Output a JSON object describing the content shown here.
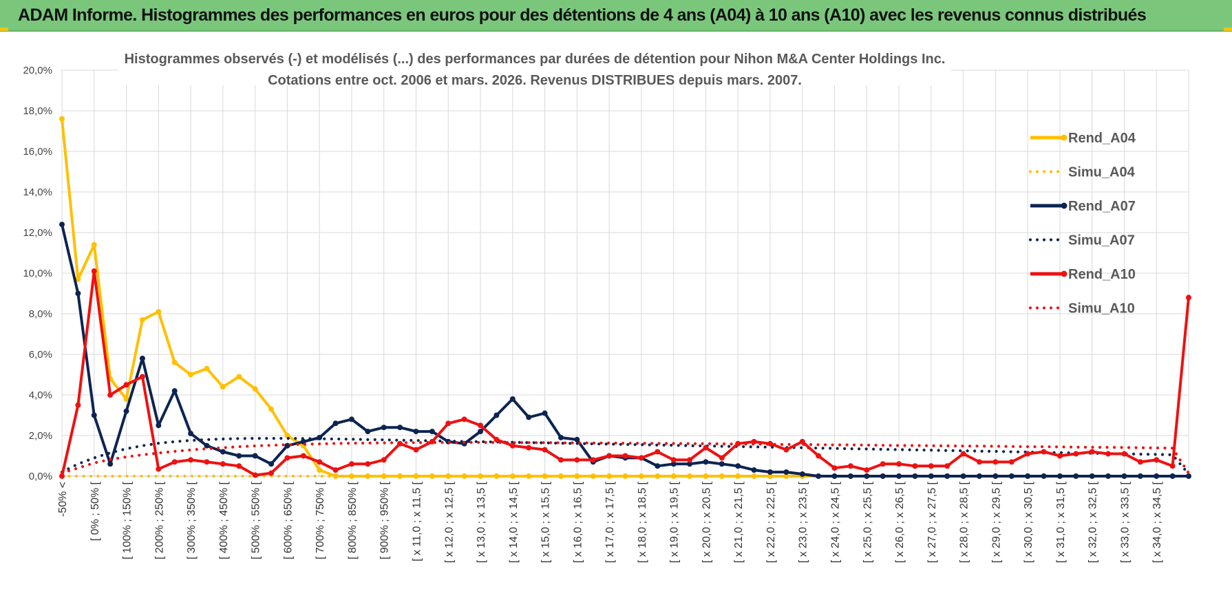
{
  "header": {
    "title": "ADAM Informe. Histogrammes des performances en euros pour des détentions de 4 ans (A04) à 10 ans (A10) avec les revenus connus distribués"
  },
  "colors": {
    "header_bg": "#7ac77c",
    "a04": "#ffc000",
    "a07": "#0d2452",
    "a10": "#ee1111",
    "grid": "#d9d9d9"
  },
  "chart_data": {
    "type": "line",
    "title": "Histogrammes observés (-) et modélisés (...) des performances par durées de détention pour Nihon M&A Center Holdings Inc.",
    "subtitle": "Cotations entre oct. 2006 et mars. 2026. Revenus DISTRIBUES depuis mars. 2007.",
    "xlabel": "",
    "ylabel": "",
    "ylim": [
      0,
      20
    ],
    "y_ticks": [
      "0,0%",
      "2,0%",
      "4,0%",
      "6,0%",
      "8,0%",
      "10,0%",
      "12,0%",
      "14,0%",
      "16,0%",
      "18,0%",
      "20,0%"
    ],
    "x_tick_labels": [
      "-50% <",
      "[ 0% ; 50% [",
      "[ 100% ; 150% [",
      "[ 200% ; 250% [",
      "[ 300% ; 350% [",
      "[ 400% ; 450% [",
      "[ 500% ; 550% [",
      "[ 600% ; 650% [",
      "[ 700% ; 750% [",
      "[ 800% ; 850% [",
      "[ 900% ; 950% [",
      "[ x 11,0 ; x 11,5 [",
      "[ x 12,0 ; x 12,5 [",
      "[ x 13,0 ; x 13,5 [",
      "[ x 14,0 ; x 14,5 [",
      "[ x 15,0 ; x 15,5 [",
      "[ x 16,0 ; x 16,5 [",
      "[ x 17,0 ; x 17,5 [",
      "[ x 18,0 ; x 18,5 [",
      "[ x 19,0 ; x 19,5 [",
      "[ x 20,0 ; x 20,5 [",
      "[ x 21,0 ; x 21,5 [",
      "[ x 22,0 ; x 22,5 [",
      "[ x 23,0 ; x 23,5 [",
      "[ x 24,0 ; x 24,5 [",
      "[ x 25,0 ; x 25,5 [",
      "[ x 26,0 ; x 26,5 [",
      "[ x 27,0 ; x 27,5 [",
      "[ x 28,0 ; x 28,5 [",
      "[ x 29,0 ; x 29,5 [",
      "[ x 30,0 ; x 30,5 [",
      "[ x 31,0 ; x 31,5 [",
      "[ x 32,0 ; x 32,5 [",
      "[ x 33,0 ; x 33,5 [",
      "[ x 34,0 ; x 34,5 ["
    ],
    "legend_position": "right",
    "grid": true,
    "series": [
      {
        "name": "Rend_A04",
        "style": "solid",
        "color": "#ffc000",
        "values": [
          17.6,
          9.7,
          11.4,
          4.8,
          3.8,
          7.7,
          8.1,
          5.6,
          5.0,
          5.3,
          4.4,
          4.9,
          4.3,
          3.3,
          2.0,
          1.5,
          0.3,
          0,
          0,
          0,
          0,
          0,
          0,
          0,
          0,
          0,
          0,
          0,
          0,
          0,
          0,
          0,
          0,
          0,
          0,
          0,
          0,
          0,
          0,
          0,
          0,
          0,
          0,
          0,
          0,
          0,
          0,
          0,
          0,
          0,
          0,
          0,
          0,
          0,
          0,
          0,
          0,
          0,
          0,
          0,
          0,
          0,
          0,
          0,
          0,
          0,
          0,
          0,
          0,
          0,
          0
        ]
      },
      {
        "name": "Simu_A04",
        "style": "dotted",
        "color": "#ffc000",
        "values": [
          0,
          0,
          0,
          0,
          0,
          0,
          0,
          0,
          0,
          0,
          0,
          0,
          0,
          0,
          0,
          0,
          0,
          0,
          0,
          0,
          0,
          0,
          0,
          0,
          0,
          0,
          0,
          0,
          0,
          0,
          0,
          0,
          0,
          0,
          0,
          0,
          0,
          0,
          0,
          0,
          0,
          0,
          0,
          0,
          0,
          0,
          0,
          0,
          0,
          0,
          0,
          0,
          0,
          0,
          0,
          0,
          0,
          0,
          0,
          0,
          0,
          0,
          0,
          0,
          0,
          0,
          0,
          0,
          0,
          0,
          0
        ]
      },
      {
        "name": "Rend_A07",
        "style": "solid",
        "color": "#0d2452",
        "values": [
          12.4,
          9.0,
          3.0,
          0.6,
          3.2,
          5.8,
          2.5,
          4.2,
          2.1,
          1.5,
          1.2,
          1.0,
          1.0,
          0.6,
          1.5,
          1.7,
          1.9,
          2.6,
          2.8,
          2.2,
          2.4,
          2.4,
          2.2,
          2.2,
          1.7,
          1.6,
          2.2,
          3.0,
          3.8,
          2.9,
          3.1,
          1.9,
          1.8,
          0.7,
          1.0,
          0.9,
          0.9,
          0.5,
          0.6,
          0.6,
          0.7,
          0.6,
          0.5,
          0.3,
          0.2,
          0.2,
          0.1,
          0,
          0,
          0,
          0,
          0,
          0,
          0,
          0,
          0,
          0,
          0,
          0,
          0,
          0,
          0,
          0,
          0,
          0,
          0,
          0,
          0,
          0,
          0,
          0
        ]
      },
      {
        "name": "Simu_A07",
        "style": "dotted",
        "color": "#0d2452",
        "values": [
          0.2,
          0.6,
          0.9,
          1.15,
          1.35,
          1.5,
          1.62,
          1.7,
          1.76,
          1.8,
          1.83,
          1.85,
          1.86,
          1.86,
          1.86,
          1.85,
          1.84,
          1.83,
          1.82,
          1.8,
          1.79,
          1.77,
          1.76,
          1.74,
          1.73,
          1.71,
          1.7,
          1.68,
          1.67,
          1.65,
          1.64,
          1.62,
          1.61,
          1.59,
          1.58,
          1.56,
          1.55,
          1.53,
          1.52,
          1.5,
          1.49,
          1.47,
          1.46,
          1.44,
          1.43,
          1.41,
          1.4,
          1.38,
          1.37,
          1.35,
          1.34,
          1.32,
          1.31,
          1.29,
          1.28,
          1.26,
          1.25,
          1.23,
          1.22,
          1.2,
          1.19,
          1.17,
          1.16,
          1.14,
          1.13,
          1.11,
          1.1,
          1.08,
          1.07,
          1.05,
          0.1
        ]
      },
      {
        "name": "Rend_A10",
        "style": "solid",
        "color": "#ee1111",
        "values": [
          0,
          3.5,
          10.1,
          4.0,
          4.5,
          4.9,
          0.35,
          0.7,
          0.8,
          0.7,
          0.6,
          0.5,
          0.05,
          0.15,
          0.9,
          1.0,
          0.7,
          0.3,
          0.6,
          0.6,
          0.8,
          1.6,
          1.3,
          1.7,
          2.6,
          2.8,
          2.5,
          1.8,
          1.5,
          1.4,
          1.3,
          0.8,
          0.8,
          0.8,
          1.0,
          1.0,
          0.9,
          1.2,
          0.8,
          0.8,
          1.4,
          0.9,
          1.6,
          1.7,
          1.6,
          1.3,
          1.7,
          1.0,
          0.4,
          0.5,
          0.3,
          0.6,
          0.6,
          0.5,
          0.5,
          0.5,
          1.1,
          0.7,
          0.7,
          0.7,
          1.1,
          1.2,
          1.0,
          1.1,
          1.2,
          1.1,
          1.1,
          0.7,
          0.8,
          0.5,
          8.8
        ]
      },
      {
        "name": "Simu_A10",
        "style": "dotted",
        "color": "#ee1111",
        "values": [
          0.15,
          0.4,
          0.65,
          0.82,
          0.95,
          1.05,
          1.14,
          1.22,
          1.29,
          1.35,
          1.4,
          1.45,
          1.49,
          1.52,
          1.55,
          1.57,
          1.59,
          1.61,
          1.62,
          1.63,
          1.64,
          1.65,
          1.65,
          1.66,
          1.66,
          1.66,
          1.66,
          1.66,
          1.65,
          1.65,
          1.65,
          1.64,
          1.64,
          1.63,
          1.63,
          1.62,
          1.62,
          1.61,
          1.61,
          1.6,
          1.6,
          1.59,
          1.58,
          1.58,
          1.57,
          1.56,
          1.56,
          1.55,
          1.54,
          1.54,
          1.53,
          1.52,
          1.51,
          1.51,
          1.5,
          1.49,
          1.48,
          1.48,
          1.47,
          1.46,
          1.45,
          1.45,
          1.44,
          1.43,
          1.42,
          1.42,
          1.41,
          1.4,
          1.39,
          1.38,
          0.15
        ]
      }
    ]
  }
}
